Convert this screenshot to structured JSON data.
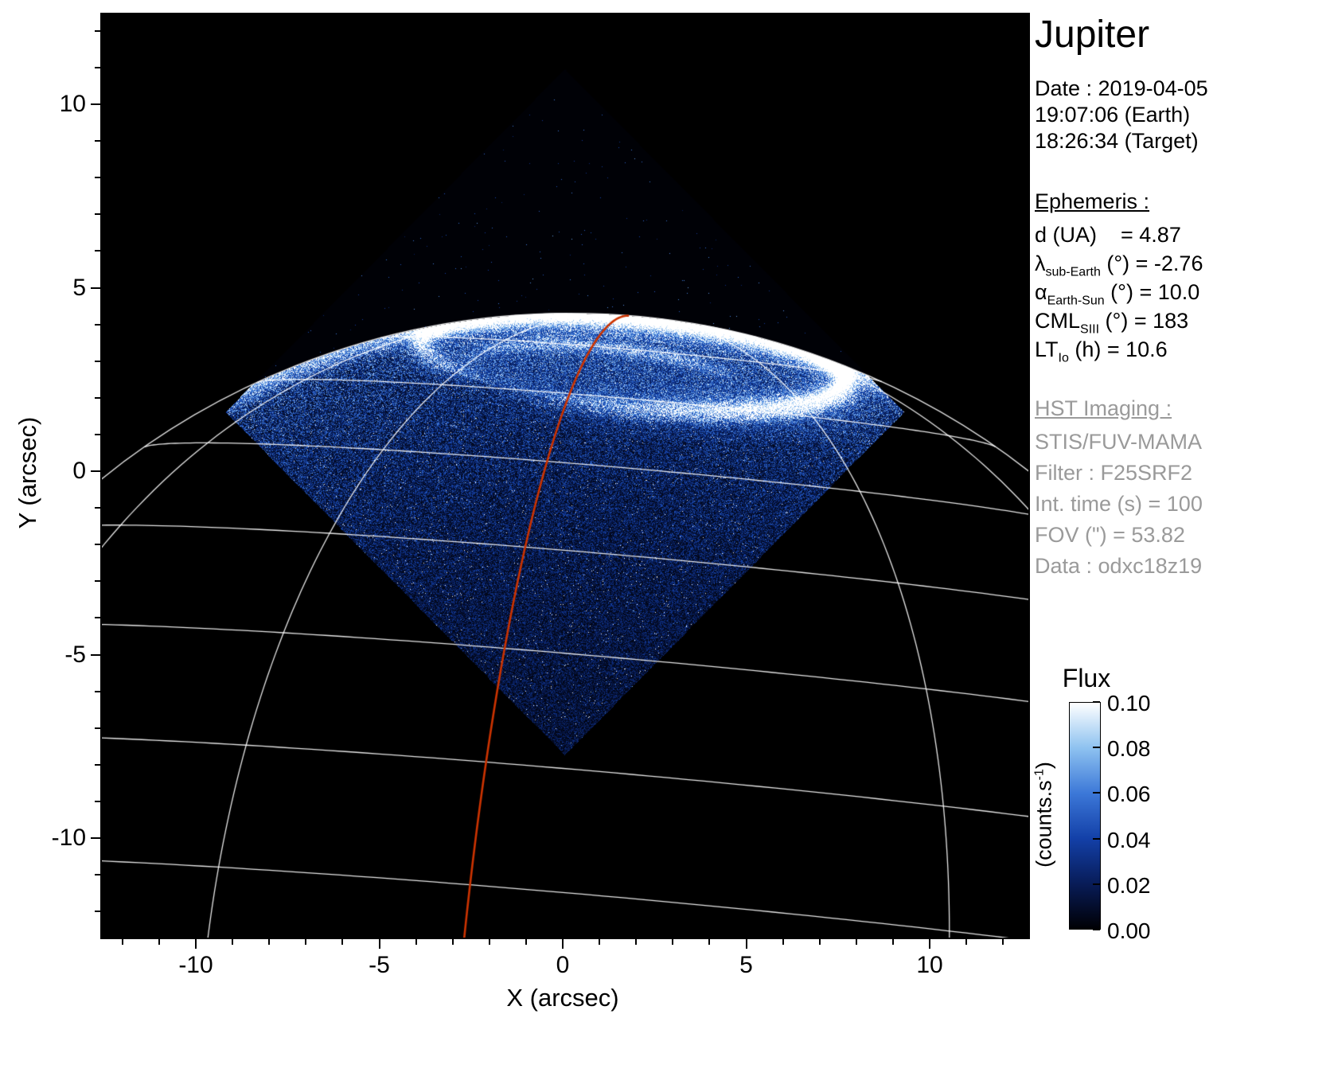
{
  "title": "Jupiter",
  "colors": {
    "background": "#ffffff",
    "sky": "#000000",
    "graticule": "#ffffff",
    "meridian_line": "#cc3300",
    "panel_gray": "#9a9a9a",
    "text": "#000000"
  },
  "date_block": {
    "lines": [
      "Date : 2019-04-05",
      "19:07:06 (Earth)",
      "18:26:34 (Target)"
    ]
  },
  "ephemeris": {
    "header": "Ephemeris :",
    "rows": [
      {
        "main": "d (UA)",
        "sub": "",
        "rest": "    = 4.87"
      },
      {
        "main": "λ",
        "sub": "sub-Earth",
        "rest": " (°) = -2.76"
      },
      {
        "main": "α",
        "sub": "Earth-Sun",
        "rest": " (°) = 10.0"
      },
      {
        "main": "CML",
        "sub": "SIII",
        "rest": " (°) = 183"
      },
      {
        "main": "LT",
        "sub": "Io",
        "rest": " (h) = 10.6"
      }
    ]
  },
  "hst": {
    "header": "HST Imaging :",
    "lines": [
      "STIS/FUV-MAMA",
      "Filter : F25SRF2",
      "Int. time (s) = 100",
      "FOV (\") = 53.82",
      "Data : odxc18z19"
    ]
  },
  "colorbar": {
    "title": "Flux",
    "unit_pre": "(counts.s",
    "unit_sup": "-1",
    "unit_post": ")",
    "ticks": [
      "0.10",
      "0.08",
      "0.06",
      "0.04",
      "0.02",
      "0.00"
    ],
    "stops": [
      "#000004",
      "#081c58",
      "#1340a8",
      "#3c78d8",
      "#8ec2f0",
      "#ffffff"
    ]
  },
  "axes": {
    "x_label": "X (arcsec)",
    "y_label": "Y (arcsec)",
    "x_major": [
      -10,
      -5,
      0,
      5,
      10
    ],
    "y_major": [
      -10,
      -5,
      0,
      5,
      10
    ]
  },
  "chart_data": {
    "type": "heatmap",
    "title": "Jupiter",
    "xlabel": "X (arcsec)",
    "ylabel": "Y (arcsec)",
    "xlim": [
      -12.6,
      12.7
    ],
    "ylim": [
      -12.7,
      12.5
    ],
    "x_ticks": [
      -10,
      -5,
      0,
      5,
      10
    ],
    "y_ticks": [
      -10,
      -5,
      0,
      5,
      10
    ],
    "grid": "white planetary latitude/longitude graticule over the disk",
    "colorbar": {
      "label": "Flux",
      "unit": "counts.s⁻¹",
      "range": [
        0.0,
        0.1
      ],
      "ticks": [
        0.0,
        0.02,
        0.04,
        0.06,
        0.08,
        0.1
      ]
    },
    "content": "HST STIS/FUV-MAMA far-UV image of Jupiter's north polar aurora on a black sky; the square detector field is rotated ~45° (diamond, corners near x=-9.2,+9.3 arcsec at y≈1.6 and bottom tip near y≈-7.7) showing speckled blue disk emission, a bright white auroral oval centered near (2, 3) arcsec with semi-axes ~5.8 x 1.3 arcsec, bright limb near y≈4.4 at x=0, and a red-orange meridian line running from the pole region down past the bottom of the plot near x≈-2.4"
  }
}
